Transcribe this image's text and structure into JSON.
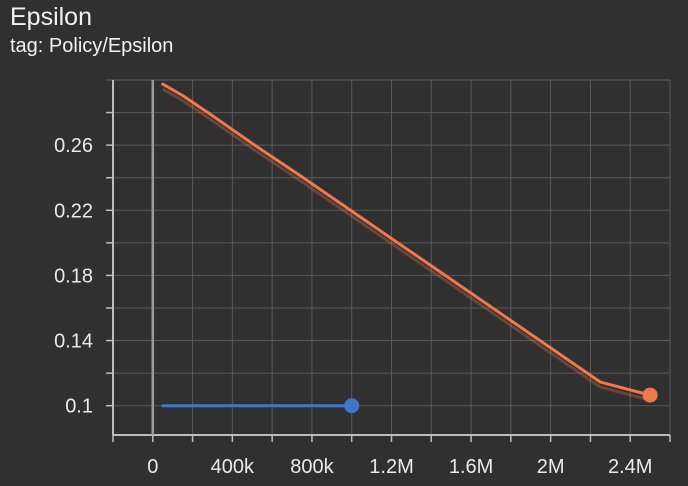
{
  "card": {
    "title": "Epsilon",
    "subtitle": "tag: Policy/Epsilon"
  },
  "colors": {
    "background": "#303030",
    "grid": "#5f5f5f",
    "axis": "#bdbdbd",
    "series_orange": "#f2784b",
    "series_blue": "#3d78c8"
  },
  "chart_data": {
    "type": "line",
    "title": "Epsilon",
    "xlabel": "",
    "ylabel": "",
    "xlim": [
      -200000,
      2600000
    ],
    "ylim": [
      0.082,
      0.3
    ],
    "x_ticks": [
      0,
      400000,
      800000,
      1200000,
      1600000,
      2000000,
      2400000
    ],
    "x_tick_labels": [
      "0",
      "400k",
      "800k",
      "1.2M",
      "1.6M",
      "2M",
      "2.4M"
    ],
    "y_ticks": [
      0.1,
      0.14,
      0.18,
      0.22,
      0.26
    ],
    "y_tick_labels": [
      "0.1",
      "0.14",
      "0.18",
      "0.22",
      "0.26"
    ],
    "grid": true,
    "series": [
      {
        "color": "#f2784b",
        "x": [
          50000,
          150000,
          300000,
          500000,
          750000,
          1000000,
          1250000,
          1500000,
          1750000,
          2000000,
          2250000,
          2500000
        ],
        "y": [
          0.2975,
          0.2905,
          0.278,
          0.261,
          0.2405,
          0.2195,
          0.1985,
          0.1775,
          0.1565,
          0.1355,
          0.1145,
          0.1065
        ]
      },
      {
        "color": "#3d78c8",
        "x": [
          50000,
          1000000
        ],
        "y": [
          0.1,
          0.1
        ]
      }
    ]
  }
}
